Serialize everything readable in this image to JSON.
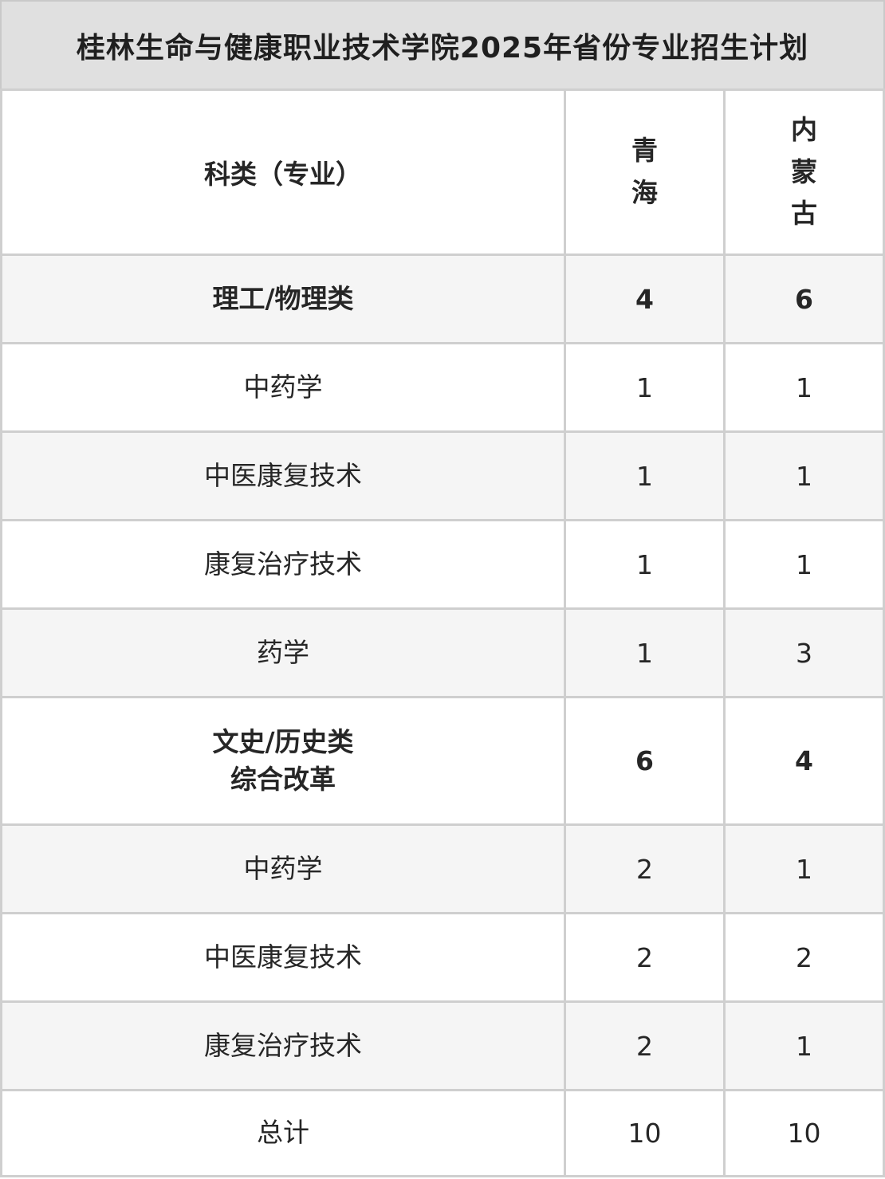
{
  "title": "桂林生命与健康职业技术学院2025年省份专业招生计划",
  "table": {
    "header": {
      "category": "科类（专业）",
      "provinces": [
        "青海",
        "内蒙古"
      ]
    },
    "rows": [
      {
        "label": "理工/物理类",
        "values": [
          "4",
          "6"
        ]
      },
      {
        "label": "中药学",
        "values": [
          "1",
          "1"
        ]
      },
      {
        "label": "中医康复技术",
        "values": [
          "1",
          "1"
        ]
      },
      {
        "label": "康复治疗技术",
        "values": [
          "1",
          "1"
        ]
      },
      {
        "label": "药学",
        "values": [
          "1",
          "3"
        ]
      },
      {
        "label": "文史/历史类\n综合改革",
        "values": [
          "6",
          "4"
        ]
      },
      {
        "label": "中药学",
        "values": [
          "2",
          "1"
        ]
      },
      {
        "label": "中医康复技术",
        "values": [
          "2",
          "2"
        ]
      },
      {
        "label": "康复治疗技术",
        "values": [
          "2",
          "1"
        ]
      },
      {
        "label": "总计",
        "values": [
          "10",
          "10"
        ]
      }
    ]
  },
  "colors": {
    "title_background": "#e0e0e0",
    "border": "#cfcfcf",
    "stripe_row_background": "#f5f5f5",
    "white_row_background": "#ffffff",
    "text": "#262626"
  }
}
